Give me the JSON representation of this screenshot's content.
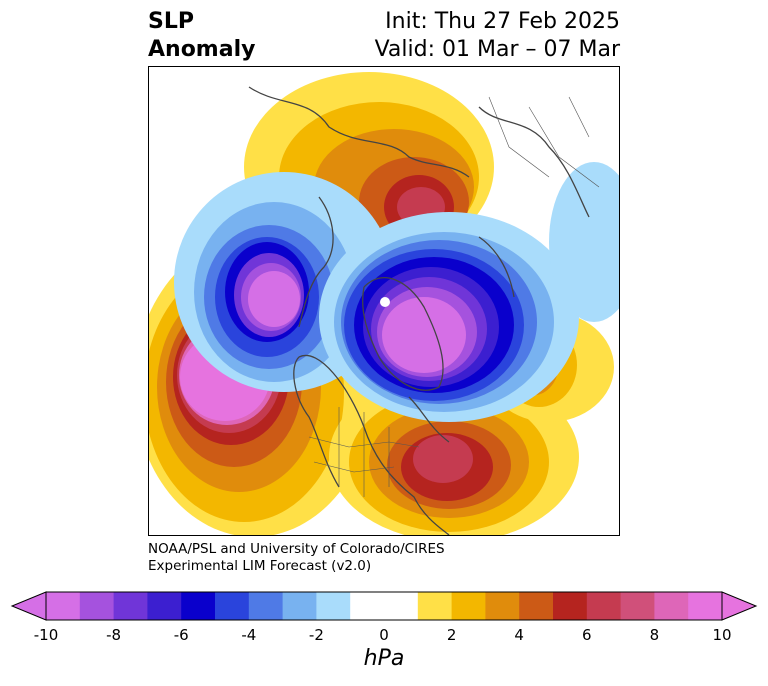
{
  "title": {
    "left_line1": "SLP",
    "left_line2": "Anomaly",
    "right_line1": "Init: Thu 27 Feb 2025",
    "right_line2": "Valid: 01 Mar – 07 Mar"
  },
  "credit": {
    "line1": "NOAA/PSL and University of Colorado/CIRES",
    "line2": "Experimental LIM Forecast (v2.0)"
  },
  "colorbar": {
    "unit": "hPa",
    "ticks": [
      "-10",
      "-8",
      "-6",
      "-4",
      "-2",
      "0",
      "2",
      "4",
      "6",
      "8",
      "10"
    ],
    "colors": [
      "#d56fe6",
      "#a552de",
      "#7035d8",
      "#3c1fd0",
      "#0a00cc",
      "#2a44dc",
      "#4f7ae6",
      "#78b2f0",
      "#a9dcfb",
      "#ffffff",
      "#ffffff",
      "#ffe047",
      "#f3b700",
      "#e08c0c",
      "#cc5a16",
      "#b5241f",
      "#c53b50",
      "#d0507a",
      "#de66b8",
      "#e673df"
    ],
    "under_color": "#d56fe6",
    "over_color": "#e673df"
  },
  "map": {
    "projection": "north-polar-stereographic",
    "features": [
      {
        "name": "north-pacific-high",
        "sign": "positive",
        "peak_hpa": 10
      },
      {
        "name": "western-atlantic-high",
        "sign": "positive",
        "peak_hpa": 7
      },
      {
        "name": "central-atlantic-high",
        "sign": "positive",
        "peak_hpa": 6
      },
      {
        "name": "siberia-high",
        "sign": "positive",
        "peak_hpa": 6
      },
      {
        "name": "arctic-greenland-low",
        "sign": "negative",
        "peak_hpa": -10
      },
      {
        "name": "bering-low",
        "sign": "negative",
        "peak_hpa": -10
      },
      {
        "name": "scandinavia-low",
        "sign": "negative",
        "peak_hpa": -4
      }
    ]
  }
}
